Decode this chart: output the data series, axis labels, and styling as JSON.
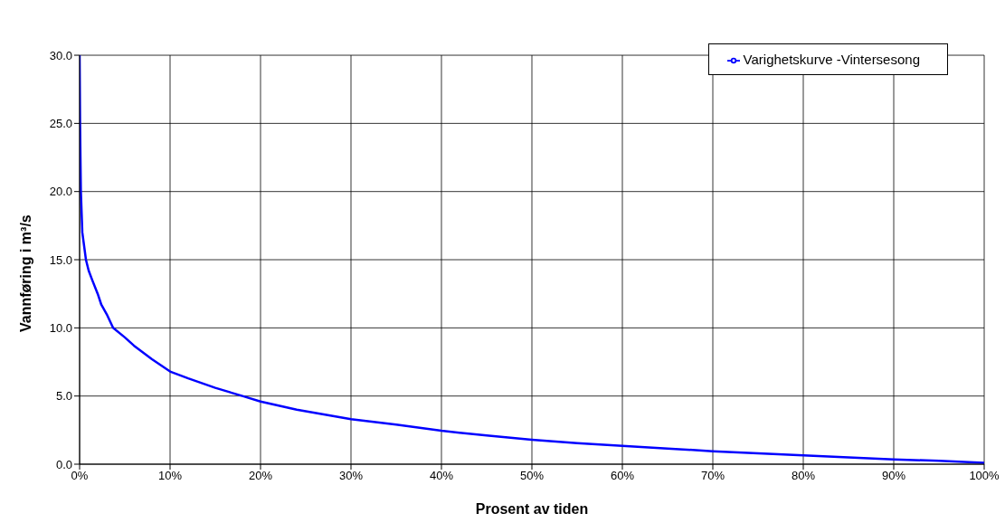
{
  "chart_data": {
    "type": "line",
    "xlabel": "Prosent av tiden",
    "ylabel": "Vannføring i m³/s",
    "x": [
      0,
      0.05,
      0.14,
      0.3,
      0.7,
      1,
      1.4,
      2,
      2.4,
      3,
      3.7,
      5,
      6,
      8,
      10,
      12,
      15,
      18,
      20,
      24,
      30,
      35,
      40,
      45,
      50,
      55,
      60,
      65,
      70,
      75,
      80,
      85,
      90,
      95,
      100
    ],
    "series": [
      {
        "name": "Varighetskurve  -Vintersesong",
        "color": "#0000ff",
        "values": [
          30,
          25,
          20,
          17,
          15,
          14.2,
          13.5,
          12.5,
          11.7,
          11,
          10,
          9.3,
          8.7,
          7.7,
          6.8,
          6.3,
          5.6,
          5,
          4.6,
          4,
          3.3,
          2.9,
          2.45,
          2.1,
          1.8,
          1.55,
          1.35,
          1.15,
          0.95,
          0.8,
          0.65,
          0.5,
          0.35,
          0.25,
          0.1
        ]
      }
    ],
    "xlim": [
      0,
      100
    ],
    "xticks": [
      {
        "value": 0,
        "label": "0%"
      },
      {
        "value": 10,
        "label": "10%"
      },
      {
        "value": 20,
        "label": "20%"
      },
      {
        "value": 30,
        "label": "30%"
      },
      {
        "value": 40,
        "label": "40%"
      },
      {
        "value": 50,
        "label": "50%"
      },
      {
        "value": 60,
        "label": "60%"
      },
      {
        "value": 70,
        "label": "70%"
      },
      {
        "value": 80,
        "label": "80%"
      },
      {
        "value": 90,
        "label": "90%"
      },
      {
        "value": 100,
        "label": "100%"
      }
    ],
    "ylim": [
      0,
      30
    ],
    "yticks": [
      {
        "value": 0,
        "label": "0.0"
      },
      {
        "value": 5,
        "label": "5.0"
      },
      {
        "value": 10,
        "label": "10.0"
      },
      {
        "value": 15,
        "label": "15.0"
      },
      {
        "value": 20,
        "label": "20.0"
      },
      {
        "value": 25,
        "label": "25.0"
      },
      {
        "value": 30,
        "label": "30.0"
      }
    ],
    "grid": true,
    "legend": "top right",
    "marker": "none",
    "line_style": "solid"
  }
}
